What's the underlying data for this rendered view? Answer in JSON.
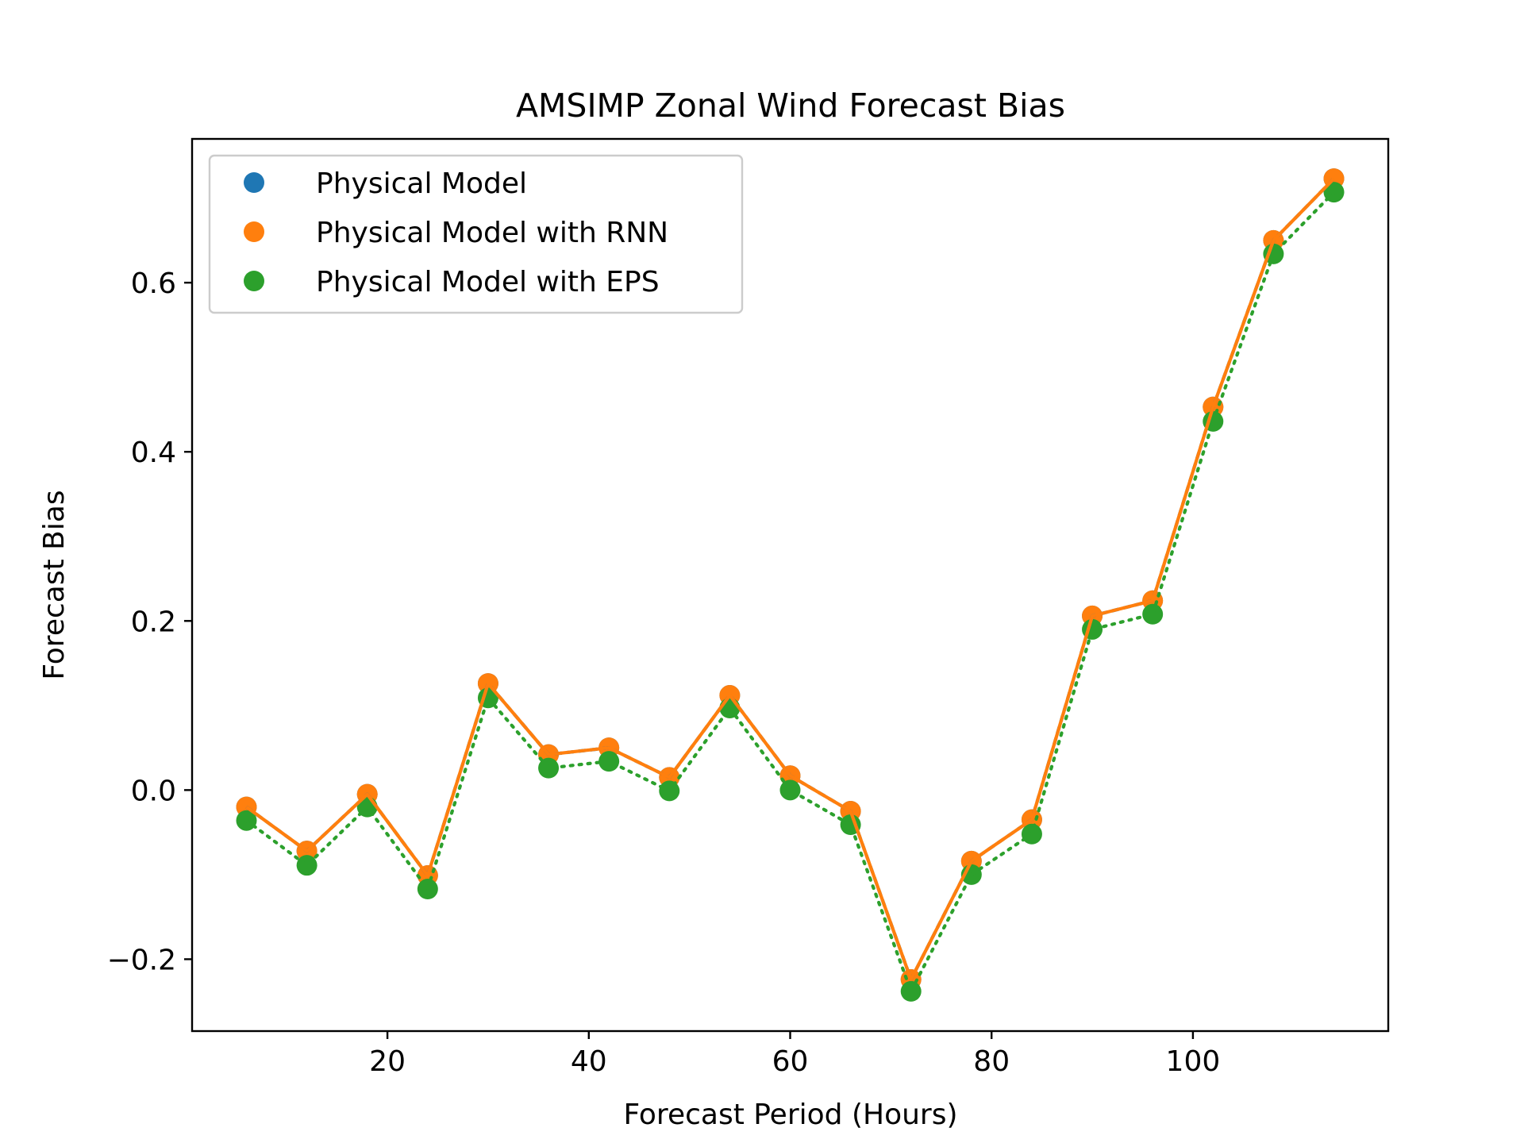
{
  "chart_data": {
    "type": "line",
    "title": "AMSIMP Zonal Wind Forecast Bias",
    "xlabel": "Forecast Period (Hours)",
    "ylabel": "Forecast Bias",
    "xlim": [
      0.6,
      119.4
    ],
    "ylim": [
      -0.285,
      0.77
    ],
    "xticks": [
      20,
      40,
      60,
      80,
      100
    ],
    "xtick_labels": [
      "20",
      "40",
      "60",
      "80",
      "100"
    ],
    "yticks": [
      -0.2,
      0.0,
      0.2,
      0.4,
      0.6
    ],
    "ytick_labels": [
      "−0.2",
      "0.0",
      "0.2",
      "0.4",
      "0.6"
    ],
    "grid": false,
    "legend_position": "top-left",
    "x": [
      6,
      12,
      18,
      24,
      30,
      36,
      42,
      48,
      54,
      60,
      66,
      72,
      78,
      84,
      90,
      96,
      102,
      108,
      114
    ],
    "series": [
      {
        "name": "Physical Model",
        "color": "#1f77b4",
        "line_style": "dashed",
        "values": [
          -0.02,
          -0.072,
          -0.005,
          -0.101,
          0.126,
          0.042,
          0.05,
          0.015,
          0.112,
          0.017,
          -0.025,
          -0.224,
          -0.084,
          -0.035,
          0.206,
          0.224,
          0.453,
          0.65,
          0.723
        ]
      },
      {
        "name": "Physical Model with RNN",
        "color": "#ff7f0e",
        "line_style": "solid",
        "values": [
          -0.02,
          -0.072,
          -0.005,
          -0.101,
          0.126,
          0.042,
          0.05,
          0.015,
          0.112,
          0.017,
          -0.025,
          -0.224,
          -0.084,
          -0.035,
          0.206,
          0.224,
          0.453,
          0.65,
          0.723
        ]
      },
      {
        "name": "Physical Model with EPS",
        "color": "#2ca02c",
        "line_style": "dotted",
        "values": [
          -0.036,
          -0.089,
          -0.02,
          -0.117,
          0.109,
          0.026,
          0.034,
          -0.001,
          0.097,
          0.0,
          -0.041,
          -0.238,
          -0.1,
          -0.052,
          0.19,
          0.208,
          0.436,
          0.634,
          0.707
        ]
      }
    ]
  }
}
